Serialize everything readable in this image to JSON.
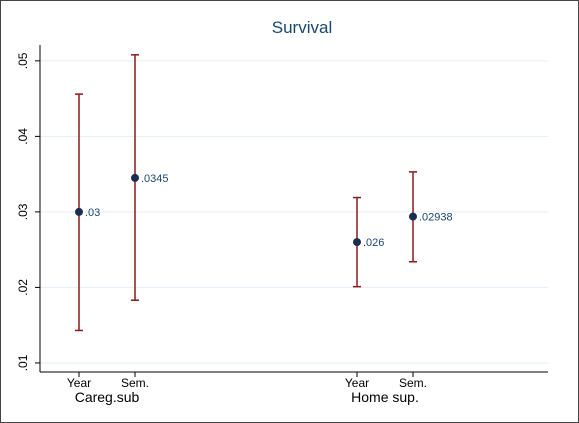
{
  "chart_data": {
    "type": "errorbar",
    "title": "Survival",
    "groups": [
      {
        "name": "Careg.sub",
        "categories": [
          "Year",
          "Sem."
        ],
        "values": [
          0.03,
          0.0345
        ],
        "value_labels": [
          ".03",
          ".0345"
        ],
        "lower": [
          0.0143,
          0.0183
        ],
        "upper": [
          0.0456,
          0.0508
        ]
      },
      {
        "name": "Home sup.",
        "categories": [
          "Year",
          "Sem."
        ],
        "values": [
          0.026,
          0.02938
        ],
        "value_labels": [
          ".026",
          ".02938"
        ],
        "lower": [
          0.0201,
          0.0234
        ],
        "upper": [
          0.0319,
          0.0353
        ]
      }
    ],
    "ylim": [
      0.0088,
      0.0521
    ],
    "yticks": [
      {
        "value": 0.01,
        "label": ".01"
      },
      {
        "value": 0.02,
        "label": ".02"
      },
      {
        "value": 0.03,
        "label": ".03"
      },
      {
        "value": 0.04,
        "label": ".04"
      },
      {
        "value": 0.05,
        "label": ".05"
      }
    ],
    "grid": true,
    "bar_color": "#8b1a1a",
    "point_color": "#1a2e4f",
    "label_color": "#1a476f"
  }
}
